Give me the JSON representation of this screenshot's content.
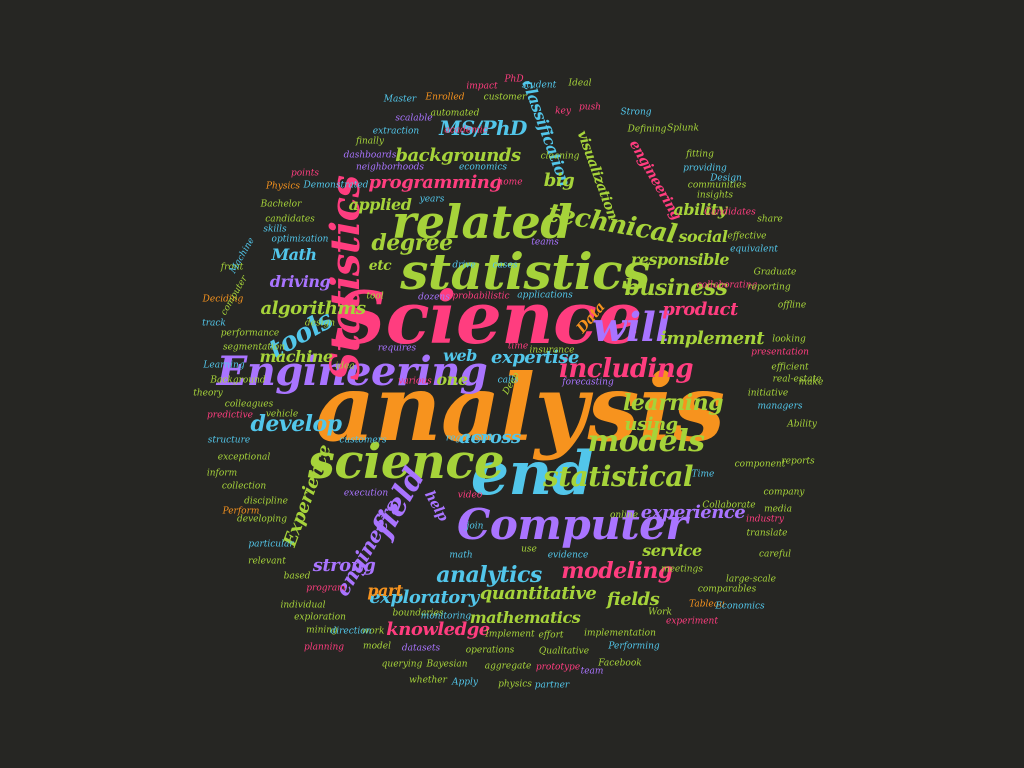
{
  "words": [
    {
      "t": "analysis",
      "c": "orange",
      "s": 92,
      "r": 0
    },
    {
      "t": "Science",
      "c": "pink",
      "s": 72,
      "r": 0
    },
    {
      "t": "statistics",
      "c": "green",
      "s": 50,
      "r": 0
    },
    {
      "t": "related",
      "c": "green",
      "s": 46,
      "r": 0
    },
    {
      "t": "end",
      "c": "blue",
      "s": 60,
      "r": 0
    },
    {
      "t": "Computer",
      "c": "purple",
      "s": 42,
      "r": 0
    },
    {
      "t": "science",
      "c": "green",
      "s": 48,
      "r": 0
    },
    {
      "t": "Engineering",
      "c": "purple",
      "s": 40,
      "r": 0
    },
    {
      "t": "will",
      "c": "purple",
      "s": 40,
      "r": 0
    },
    {
      "t": "Statistics",
      "c": "pink",
      "s": 40,
      "r": 90
    },
    {
      "t": "models",
      "c": "green",
      "s": 30,
      "r": 0
    },
    {
      "t": "including",
      "c": "pink",
      "s": 26,
      "r": 0
    },
    {
      "t": "statistical",
      "c": "green",
      "s": 28,
      "r": 0
    },
    {
      "t": "field",
      "c": "purple",
      "s": 30,
      "r": 60
    },
    {
      "t": "technical",
      "c": "green",
      "s": 26,
      "r": -10
    },
    {
      "t": "business",
      "c": "green",
      "s": 22,
      "r": 0
    },
    {
      "t": "modeling",
      "c": "pink",
      "s": 22,
      "r": 0
    },
    {
      "t": "develop",
      "c": "blue",
      "s": 22,
      "r": 0
    },
    {
      "t": "learning",
      "c": "green",
      "s": 22,
      "r": 0
    },
    {
      "t": "analytics",
      "c": "blue",
      "s": 22,
      "r": 0
    },
    {
      "t": "tools",
      "c": "blue",
      "s": 26,
      "r": 30
    },
    {
      "t": "degree",
      "c": "green",
      "s": 22,
      "r": 0
    },
    {
      "t": "MS/PhD",
      "c": "blue",
      "s": 20,
      "r": 0
    },
    {
      "t": "implement",
      "c": "green",
      "s": 18,
      "r": 0
    },
    {
      "t": "product",
      "c": "pink",
      "s": 18,
      "r": 0
    },
    {
      "t": "expertise",
      "c": "blue",
      "s": 18,
      "r": 0
    },
    {
      "t": "experience",
      "c": "purple",
      "s": 18,
      "r": 0
    },
    {
      "t": "engineers",
      "c": "purple",
      "s": 20,
      "r": 60
    },
    {
      "t": "Experience",
      "c": "green",
      "s": 18,
      "r": 70
    },
    {
      "t": "programming",
      "c": "pink",
      "s": 18,
      "r": 0
    },
    {
      "t": "backgrounds",
      "c": "green",
      "s": 18,
      "r": 0
    },
    {
      "t": "classification",
      "c": "blue",
      "s": 16,
      "r": -70
    },
    {
      "t": "visualization",
      "c": "green",
      "s": 14,
      "r": -70
    },
    {
      "t": "engineering",
      "c": "pink",
      "s": 14,
      "r": -60
    },
    {
      "t": "quantitative",
      "c": "green",
      "s": 18,
      "r": 0
    },
    {
      "t": "exploratory",
      "c": "blue",
      "s": 18,
      "r": 0
    },
    {
      "t": "mathematics",
      "c": "green",
      "s": 16,
      "r": 0
    },
    {
      "t": "knowledge",
      "c": "pink",
      "s": 18,
      "r": 0
    },
    {
      "t": "strong",
      "c": "purple",
      "s": 18,
      "r": 0
    },
    {
      "t": "fields",
      "c": "green",
      "s": 18,
      "r": 0
    },
    {
      "t": "service",
      "c": "green",
      "s": 16,
      "r": 0
    },
    {
      "t": "across",
      "c": "blue",
      "s": 18,
      "r": 0
    },
    {
      "t": "using",
      "c": "green",
      "s": 18,
      "r": 0
    },
    {
      "t": "social",
      "c": "green",
      "s": 16,
      "r": 0
    },
    {
      "t": "responsible",
      "c": "green",
      "s": 16,
      "r": 0
    },
    {
      "t": "ability",
      "c": "green",
      "s": 16,
      "r": 0
    },
    {
      "t": "algorithms",
      "c": "green",
      "s": 18,
      "r": 0
    },
    {
      "t": "machine",
      "c": "green",
      "s": 16,
      "r": 0
    },
    {
      "t": "driving",
      "c": "purple",
      "s": 16,
      "r": 0
    },
    {
      "t": "Math",
      "c": "blue",
      "s": 16,
      "r": 0
    },
    {
      "t": "applied",
      "c": "green",
      "s": 16,
      "r": 0
    },
    {
      "t": "big",
      "c": "green",
      "s": 18,
      "r": 0
    },
    {
      "t": "etc",
      "c": "green",
      "s": 14,
      "r": 0
    },
    {
      "t": "part",
      "c": "orange",
      "s": 16,
      "r": 0
    },
    {
      "t": "web",
      "c": "blue",
      "s": 16,
      "r": 0
    },
    {
      "t": "one",
      "c": "green",
      "s": 16,
      "r": 0
    },
    {
      "t": "help",
      "c": "purple",
      "s": 14,
      "r": -60
    },
    {
      "t": "Data",
      "c": "orange",
      "s": 14,
      "r": 50
    },
    {
      "t": "Ideal",
      "c": "green",
      "s": 9,
      "r": 0
    },
    {
      "t": "PhD",
      "c": "pink",
      "s": 9,
      "r": 0
    },
    {
      "t": "impact",
      "c": "pink",
      "s": 9,
      "r": 0
    },
    {
      "t": "student",
      "c": "blue",
      "s": 9,
      "r": 0
    },
    {
      "t": "customer",
      "c": "green",
      "s": 9,
      "r": 0
    },
    {
      "t": "Enrolled",
      "c": "orange",
      "s": 9,
      "r": 0
    },
    {
      "t": "Master",
      "c": "blue",
      "s": 9,
      "r": 0
    },
    {
      "t": "automated",
      "c": "green",
      "s": 9,
      "r": 0
    },
    {
      "t": "scalable",
      "c": "purple",
      "s": 9,
      "r": 0
    },
    {
      "t": "key",
      "c": "pink",
      "s": 9,
      "r": 0
    },
    {
      "t": "push",
      "c": "pink",
      "s": 9,
      "r": 0
    },
    {
      "t": "Strong",
      "c": "blue",
      "s": 9,
      "r": 0
    },
    {
      "t": "extraction",
      "c": "blue",
      "s": 9,
      "r": 0
    },
    {
      "t": "finally",
      "c": "green",
      "s": 9,
      "r": 0
    },
    {
      "t": "Defining",
      "c": "green",
      "s": 9,
      "r": 0
    },
    {
      "t": "Splunk",
      "c": "green",
      "s": 9,
      "r": 0
    },
    {
      "t": "dashboards",
      "c": "purple",
      "s": 9,
      "r": 0
    },
    {
      "t": "neighborhoods",
      "c": "purple",
      "s": 9,
      "r": 0
    },
    {
      "t": "points",
      "c": "pink",
      "s": 9,
      "r": 0
    },
    {
      "t": "economics",
      "c": "blue",
      "s": 9,
      "r": 0
    },
    {
      "t": "home",
      "c": "pink",
      "s": 9,
      "r": 0
    },
    {
      "t": "cleaning",
      "c": "green",
      "s": 9,
      "r": 0
    },
    {
      "t": "fitting",
      "c": "green",
      "s": 9,
      "r": 0
    },
    {
      "t": "providing",
      "c": "blue",
      "s": 9,
      "r": 0
    },
    {
      "t": "Physics",
      "c": "orange",
      "s": 9,
      "r": 0
    },
    {
      "t": "Demonstrated",
      "c": "blue",
      "s": 9,
      "r": 0
    },
    {
      "t": "communities",
      "c": "green",
      "s": 9,
      "r": 0
    },
    {
      "t": "Design",
      "c": "blue",
      "s": 9,
      "r": 0
    },
    {
      "t": "insights",
      "c": "green",
      "s": 9,
      "r": 0
    },
    {
      "t": "Bachelor",
      "c": "green",
      "s": 9,
      "r": 0
    },
    {
      "t": "years",
      "c": "blue",
      "s": 9,
      "r": 0
    },
    {
      "t": "candidates",
      "c": "green",
      "s": 9,
      "r": 0
    },
    {
      "t": "Candidates",
      "c": "pink",
      "s": 9,
      "r": 0
    },
    {
      "t": "share",
      "c": "green",
      "s": 9,
      "r": 0
    },
    {
      "t": "skills",
      "c": "blue",
      "s": 9,
      "r": 0
    },
    {
      "t": "optimization",
      "c": "blue",
      "s": 9,
      "r": 0
    },
    {
      "t": "effective",
      "c": "green",
      "s": 9,
      "r": 0
    },
    {
      "t": "equivalent",
      "c": "blue",
      "s": 9,
      "r": 0
    },
    {
      "t": "front",
      "c": "green",
      "s": 9,
      "r": 0
    },
    {
      "t": "drive",
      "c": "blue",
      "s": 9,
      "r": 0
    },
    {
      "t": "teams",
      "c": "purple",
      "s": 9,
      "r": 0
    },
    {
      "t": "cases",
      "c": "blue",
      "s": 9,
      "r": 0
    },
    {
      "t": "Graduate",
      "c": "green",
      "s": 9,
      "r": 0
    },
    {
      "t": "collaborating",
      "c": "pink",
      "s": 9,
      "r": 0
    },
    {
      "t": "reporting",
      "c": "green",
      "s": 9,
      "r": 0
    },
    {
      "t": "Deciding",
      "c": "orange",
      "s": 9,
      "r": 0
    },
    {
      "t": "tool",
      "c": "green",
      "s": 9,
      "r": 0
    },
    {
      "t": "dozens",
      "c": "purple",
      "s": 9,
      "r": 0
    },
    {
      "t": "probabilistic",
      "c": "pink",
      "s": 9,
      "r": 0
    },
    {
      "t": "applications",
      "c": "blue",
      "s": 9,
      "r": 0
    },
    {
      "t": "offline",
      "c": "green",
      "s": 9,
      "r": 0
    },
    {
      "t": "track",
      "c": "blue",
      "s": 9,
      "r": 0
    },
    {
      "t": "design",
      "c": "green",
      "s": 9,
      "r": 0
    },
    {
      "t": "looking",
      "c": "green",
      "s": 9,
      "r": 0
    },
    {
      "t": "performance",
      "c": "green",
      "s": 9,
      "r": 0
    },
    {
      "t": "segmentation",
      "c": "green",
      "s": 9,
      "r": 0
    },
    {
      "t": "requires",
      "c": "purple",
      "s": 9,
      "r": 0
    },
    {
      "t": "time",
      "c": "pink",
      "s": 9,
      "r": 0
    },
    {
      "t": "insurance",
      "c": "green",
      "s": 9,
      "r": 0
    },
    {
      "t": "presentation",
      "c": "pink",
      "s": 9,
      "r": 0
    },
    {
      "t": "Learning",
      "c": "blue",
      "s": 9,
      "r": 0
    },
    {
      "t": "idea",
      "c": "green",
      "s": 9,
      "r": 0
    },
    {
      "t": "efficient",
      "c": "green",
      "s": 9,
      "r": 0
    },
    {
      "t": "Background",
      "c": "green",
      "s": 9,
      "r": 0
    },
    {
      "t": "various",
      "c": "pink",
      "s": 9,
      "r": 0
    },
    {
      "t": "calls",
      "c": "blue",
      "s": 9,
      "r": 0
    },
    {
      "t": "forecasting",
      "c": "purple",
      "s": 9,
      "r": 0
    },
    {
      "t": "real-estate",
      "c": "green",
      "s": 9,
      "r": 0
    },
    {
      "t": "initiative",
      "c": "green",
      "s": 9,
      "r": 0
    },
    {
      "t": "make",
      "c": "green",
      "s": 9,
      "r": 0
    },
    {
      "t": "theory",
      "c": "green",
      "s": 9,
      "r": 0
    },
    {
      "t": "colleagues",
      "c": "green",
      "s": 9,
      "r": 0
    },
    {
      "t": "managers",
      "c": "blue",
      "s": 9,
      "r": 0
    },
    {
      "t": "predictive",
      "c": "pink",
      "s": 9,
      "r": 0
    },
    {
      "t": "vehicle",
      "c": "green",
      "s": 9,
      "r": 0
    },
    {
      "t": "Ability",
      "c": "green",
      "s": 9,
      "r": 0
    },
    {
      "t": "structure",
      "c": "blue",
      "s": 9,
      "r": 0
    },
    {
      "t": "customers",
      "c": "blue",
      "s": 9,
      "r": 0
    },
    {
      "t": "regression",
      "c": "blue",
      "s": 9,
      "r": 0
    },
    {
      "t": "exceptional",
      "c": "green",
      "s": 9,
      "r": 0
    },
    {
      "t": "inform",
      "c": "green",
      "s": 9,
      "r": 0
    },
    {
      "t": "reports",
      "c": "green",
      "s": 9,
      "r": 0
    },
    {
      "t": "component",
      "c": "green",
      "s": 9,
      "r": 0
    },
    {
      "t": "Time",
      "c": "blue",
      "s": 9,
      "r": 0
    },
    {
      "t": "collection",
      "c": "green",
      "s": 9,
      "r": 0
    },
    {
      "t": "execution",
      "c": "purple",
      "s": 9,
      "r": 0
    },
    {
      "t": "video",
      "c": "pink",
      "s": 9,
      "r": 0
    },
    {
      "t": "company",
      "c": "green",
      "s": 9,
      "r": 0
    },
    {
      "t": "discipline",
      "c": "green",
      "s": 9,
      "r": 0
    },
    {
      "t": "Collaborate",
      "c": "green",
      "s": 9,
      "r": 0
    },
    {
      "t": "media",
      "c": "green",
      "s": 9,
      "r": 0
    },
    {
      "t": "developing",
      "c": "green",
      "s": 9,
      "r": 0
    },
    {
      "t": "join",
      "c": "blue",
      "s": 9,
      "r": 0
    },
    {
      "t": "online",
      "c": "green",
      "s": 9,
      "r": 0
    },
    {
      "t": "industry",
      "c": "pink",
      "s": 9,
      "r": 0
    },
    {
      "t": "particular",
      "c": "blue",
      "s": 9,
      "r": 0
    },
    {
      "t": "translate",
      "c": "green",
      "s": 9,
      "r": 0
    },
    {
      "t": "relevant",
      "c": "green",
      "s": 9,
      "r": 0
    },
    {
      "t": "math",
      "c": "blue",
      "s": 9,
      "r": 0
    },
    {
      "t": "use",
      "c": "green",
      "s": 9,
      "r": 0
    },
    {
      "t": "evidence",
      "c": "blue",
      "s": 9,
      "r": 0
    },
    {
      "t": "careful",
      "c": "green",
      "s": 9,
      "r": 0
    },
    {
      "t": "based",
      "c": "green",
      "s": 9,
      "r": 0
    },
    {
      "t": "meetings",
      "c": "green",
      "s": 9,
      "r": 0
    },
    {
      "t": "large-scale",
      "c": "green",
      "s": 9,
      "r": 0
    },
    {
      "t": "program",
      "c": "pink",
      "s": 9,
      "r": 0
    },
    {
      "t": "comparables",
      "c": "green",
      "s": 9,
      "r": 0
    },
    {
      "t": "individual",
      "c": "green",
      "s": 9,
      "r": 0
    },
    {
      "t": "Tableau",
      "c": "orange",
      "s": 9,
      "r": 0
    },
    {
      "t": "Economics",
      "c": "blue",
      "s": 9,
      "r": 0
    },
    {
      "t": "Work",
      "c": "green",
      "s": 9,
      "r": 0
    },
    {
      "t": "exploration",
      "c": "green",
      "s": 9,
      "r": 0
    },
    {
      "t": "boundaries",
      "c": "green",
      "s": 9,
      "r": 0
    },
    {
      "t": "mining",
      "c": "green",
      "s": 9,
      "r": 0
    },
    {
      "t": "work",
      "c": "green",
      "s": 9,
      "r": 0
    },
    {
      "t": "Implement",
      "c": "green",
      "s": 9,
      "r": 0
    },
    {
      "t": "effort",
      "c": "green",
      "s": 9,
      "r": 0
    },
    {
      "t": "implementation",
      "c": "green",
      "s": 9,
      "r": 0
    },
    {
      "t": "experiment",
      "c": "pink",
      "s": 9,
      "r": 0
    },
    {
      "t": "planning",
      "c": "pink",
      "s": 9,
      "r": 0
    },
    {
      "t": "model",
      "c": "green",
      "s": 9,
      "r": 0
    },
    {
      "t": "datasets",
      "c": "purple",
      "s": 9,
      "r": 0
    },
    {
      "t": "operations",
      "c": "green",
      "s": 9,
      "r": 0
    },
    {
      "t": "Qualitative",
      "c": "green",
      "s": 9,
      "r": 0
    },
    {
      "t": "Performing",
      "c": "blue",
      "s": 9,
      "r": 0
    },
    {
      "t": "querying",
      "c": "green",
      "s": 9,
      "r": 0
    },
    {
      "t": "Bayesian",
      "c": "green",
      "s": 9,
      "r": 0
    },
    {
      "t": "aggregate",
      "c": "green",
      "s": 9,
      "r": 0
    },
    {
      "t": "prototype",
      "c": "pink",
      "s": 9,
      "r": 0
    },
    {
      "t": "Facebook",
      "c": "green",
      "s": 9,
      "r": 0
    },
    {
      "t": "whether",
      "c": "green",
      "s": 9,
      "r": 0
    },
    {
      "t": "Apply",
      "c": "blue",
      "s": 9,
      "r": 0
    },
    {
      "t": "physics",
      "c": "green",
      "s": 9,
      "r": 0
    },
    {
      "t": "partner",
      "c": "blue",
      "s": 9,
      "r": 0
    },
    {
      "t": "Perform",
      "c": "orange",
      "s": 9,
      "r": 0
    },
    {
      "t": "Machine",
      "c": "blue",
      "s": 9,
      "r": 60
    },
    {
      "t": "computer",
      "c": "green",
      "s": 9,
      "r": 60
    },
    {
      "t": "direction",
      "c": "blue",
      "s": 9,
      "r": 0
    },
    {
      "t": "academic",
      "c": "pink",
      "s": 9,
      "r": 0
    },
    {
      "t": "monitoring",
      "c": "blue",
      "s": 9,
      "r": 0
    },
    {
      "t": "team",
      "c": "purple",
      "s": 9,
      "r": 0
    },
    {
      "t": "Deep",
      "c": "green",
      "s": 9,
      "r": 60
    }
  ]
}
